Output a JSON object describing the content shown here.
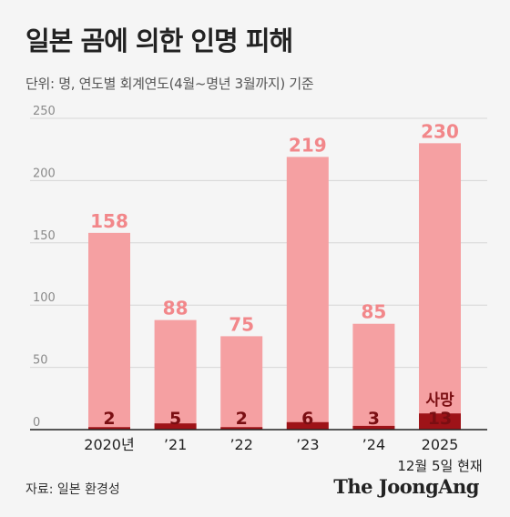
{
  "title": "일본 곰에 의한 인명 피해",
  "subtitle": "단위: 명, 연도별 회계연도(4월~명년 3월까지) 기준",
  "source": "자료: 일본 환경성",
  "brand": "The JoongAng",
  "colors": {
    "total_bar": "#f5a0a2",
    "total_label": "#f2878a",
    "deaths_bar": "#9e1318",
    "deaths_label": "#7a0e12",
    "axis": "#222222",
    "grid": "#d6d6d6"
  },
  "chart_data": {
    "type": "bar",
    "categories": [
      "2020년",
      "’21",
      "’22",
      "’23",
      "’24",
      "2025"
    ],
    "category_sublabels": [
      "",
      "",
      "",
      "",
      "",
      "12월 5일 현재"
    ],
    "series": [
      {
        "values": [
          158,
          88,
          75,
          219,
          85,
          230
        ]
      },
      {
        "values": [
          2,
          5,
          2,
          6,
          3,
          13
        ]
      }
    ],
    "annotations": [
      {
        "category": "2025",
        "text": "사망"
      }
    ],
    "yticks": [
      0,
      50,
      100,
      150,
      200,
      250
    ],
    "ylim": [
      0,
      250
    ],
    "grid": true
  }
}
